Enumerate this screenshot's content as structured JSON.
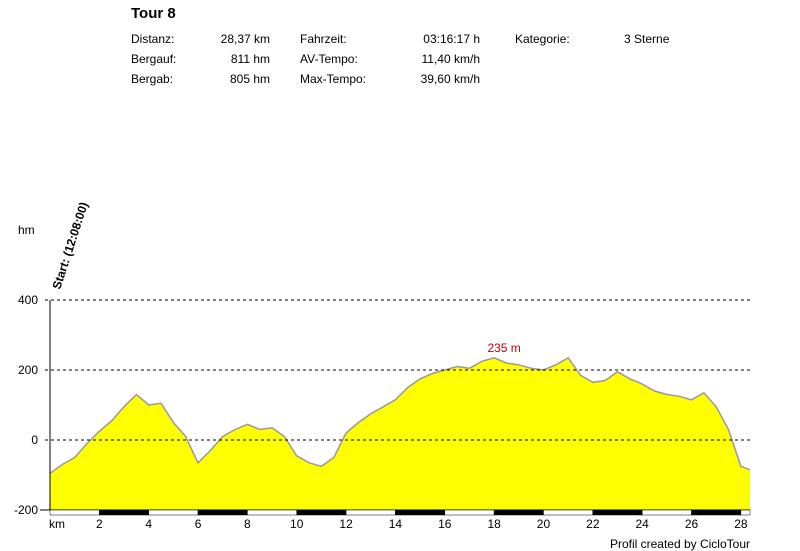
{
  "tour": {
    "title": "Tour 8",
    "stats": [
      {
        "label": "Distanz:",
        "value": "28,37 km"
      },
      {
        "label": "Bergauf:",
        "value": "811 hm"
      },
      {
        "label": "Bergab:",
        "value": "805 hm"
      },
      {
        "label": "Fahrzeit:",
        "value": "03:16:17 h"
      },
      {
        "label": "AV-Tempo:",
        "value": "11,40 km/h"
      },
      {
        "label": "Max-Tempo:",
        "value": "39,60 km/h"
      },
      {
        "label": "Kategorie:",
        "value": "3 Sterne"
      }
    ]
  },
  "credit": "Profil created by CicloTour",
  "colors": {
    "fill": "#ffff00",
    "outline": "#999999",
    "peak_label": "#cc0000"
  },
  "chart_data": {
    "type": "area",
    "ylabel": "hm",
    "xlabel": "km",
    "start_label": "Start: (12:08:00)",
    "peak_label": "235 m",
    "peak": {
      "x": 18.0,
      "y": 235
    },
    "xlim": [
      0,
      28.37
    ],
    "ylim": [
      -200,
      400
    ],
    "xticks": [
      2,
      4,
      6,
      8,
      10,
      12,
      14,
      16,
      18,
      20,
      22,
      24,
      26,
      28
    ],
    "yticks": [
      400,
      200,
      0,
      -200
    ],
    "grid": "horizontal dashed",
    "points": [
      [
        0,
        -95
      ],
      [
        0.5,
        -70
      ],
      [
        1,
        -50
      ],
      [
        1.5,
        -10
      ],
      [
        2,
        25
      ],
      [
        2.5,
        55
      ],
      [
        3,
        95
      ],
      [
        3.5,
        130
      ],
      [
        4,
        100
      ],
      [
        4.5,
        105
      ],
      [
        5,
        50
      ],
      [
        5.5,
        10
      ],
      [
        6,
        -65
      ],
      [
        6.5,
        -30
      ],
      [
        7,
        10
      ],
      [
        7.5,
        30
      ],
      [
        8,
        45
      ],
      [
        8.5,
        30
      ],
      [
        9,
        35
      ],
      [
        9.5,
        10
      ],
      [
        10,
        -45
      ],
      [
        10.5,
        -65
      ],
      [
        11,
        -75
      ],
      [
        11.5,
        -50
      ],
      [
        12,
        20
      ],
      [
        12.5,
        50
      ],
      [
        13,
        75
      ],
      [
        13.5,
        95
      ],
      [
        14,
        115
      ],
      [
        14.5,
        150
      ],
      [
        15,
        175
      ],
      [
        15.5,
        190
      ],
      [
        16,
        200
      ],
      [
        16.5,
        210
      ],
      [
        17,
        205
      ],
      [
        17.5,
        225
      ],
      [
        18,
        235
      ],
      [
        18.5,
        220
      ],
      [
        19,
        215
      ],
      [
        19.5,
        205
      ],
      [
        20,
        200
      ],
      [
        20.5,
        215
      ],
      [
        21,
        235
      ],
      [
        21.5,
        185
      ],
      [
        22,
        165
      ],
      [
        22.5,
        170
      ],
      [
        23,
        195
      ],
      [
        23.5,
        175
      ],
      [
        24,
        160
      ],
      [
        24.5,
        140
      ],
      [
        25,
        130
      ],
      [
        25.5,
        125
      ],
      [
        26,
        115
      ],
      [
        26.5,
        135
      ],
      [
        27,
        95
      ],
      [
        27.5,
        30
      ],
      [
        28,
        -75
      ],
      [
        28.37,
        -85
      ]
    ]
  }
}
